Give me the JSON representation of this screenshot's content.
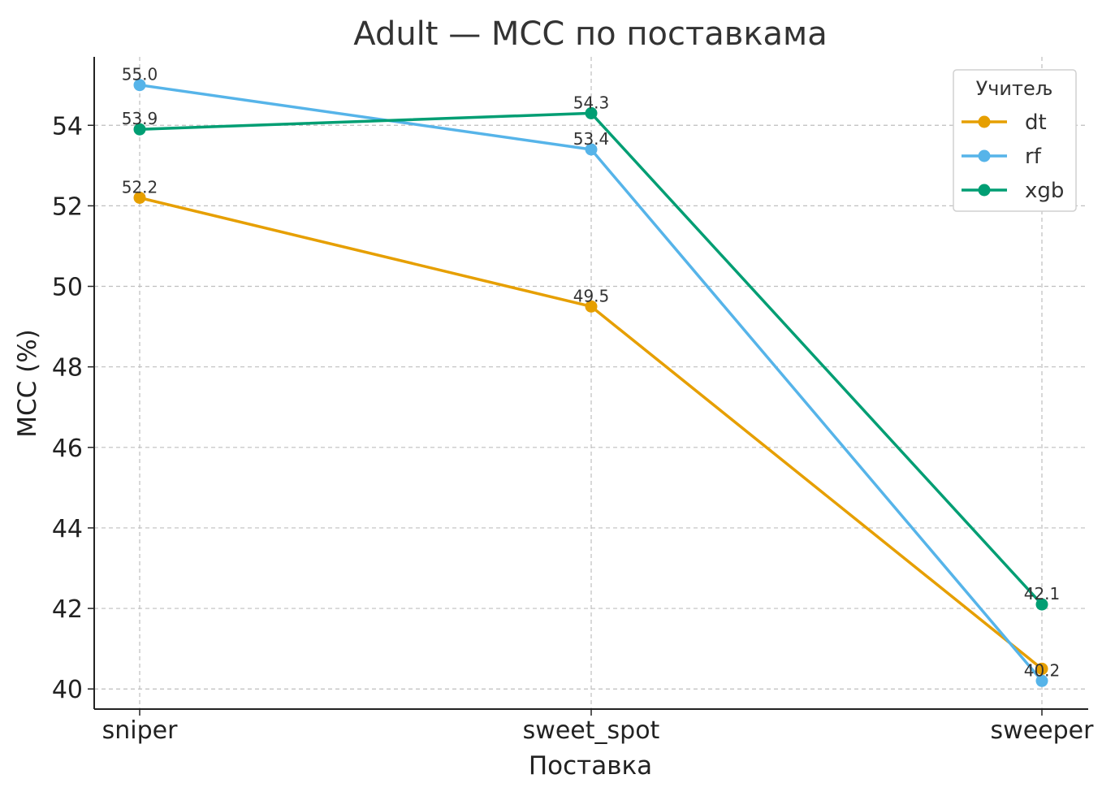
{
  "chart_data": {
    "type": "line",
    "title": "Adult — MCC по поставкама",
    "xlabel": "Поставка",
    "ylabel": "MCC (%)",
    "categories": [
      "sniper",
      "sweet_spot",
      "sweeper"
    ],
    "yticks": [
      "40",
      "42",
      "44",
      "46",
      "48",
      "50",
      "52",
      "54"
    ],
    "ylim": [
      39.5,
      55.7
    ],
    "grid": true,
    "legend": {
      "title": "Учитељ",
      "placement": "top-right"
    },
    "series": [
      {
        "name": "dt",
        "color": "#E69F00",
        "values": [
          52.2,
          49.5,
          40.5
        ],
        "labels": [
          "52.2",
          "49.5",
          ""
        ]
      },
      {
        "name": "rf",
        "color": "#56B4E9",
        "values": [
          55.0,
          53.4,
          40.2
        ],
        "labels": [
          "55.0",
          "53.4",
          "40.2"
        ]
      },
      {
        "name": "xgb",
        "color": "#009E73",
        "values": [
          53.9,
          54.3,
          42.1
        ],
        "labels": [
          "53.9",
          "54.3",
          "42.1"
        ]
      }
    ]
  }
}
